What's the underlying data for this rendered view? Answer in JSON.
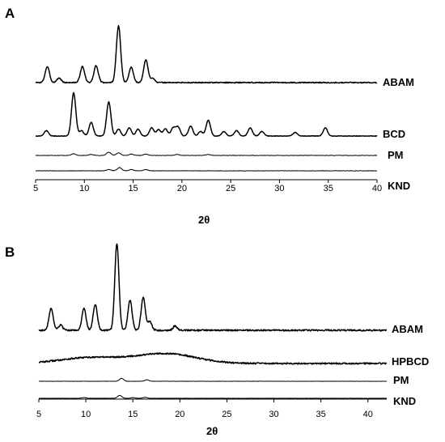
{
  "chart_data": [
    {
      "type": "line",
      "panel": "A",
      "xlabel": "2θ",
      "ylabel": "",
      "xlim": [
        5,
        40
      ],
      "xticks": [
        5,
        10,
        15,
        20,
        25,
        30,
        35,
        40
      ],
      "y_axis": "none (stacked offset traces, arbitrary intensity)",
      "grid": false,
      "series": [
        {
          "name": "ABAM",
          "baseline": 0,
          "peaks": [
            [
              6.2,
              0.28
            ],
            [
              7.4,
              0.08
            ],
            [
              9.8,
              0.28
            ],
            [
              11.2,
              0.3
            ],
            [
              13.5,
              1.0
            ],
            [
              14.8,
              0.27
            ],
            [
              16.3,
              0.4
            ],
            [
              17.0,
              0.08
            ]
          ]
        },
        {
          "name": "BCD",
          "baseline": 0,
          "peaks": [
            [
              6.1,
              0.12
            ],
            [
              8.9,
              0.95
            ],
            [
              9.7,
              0.12
            ],
            [
              10.7,
              0.3
            ],
            [
              12.5,
              0.75
            ],
            [
              13.5,
              0.15
            ],
            [
              14.6,
              0.18
            ],
            [
              15.5,
              0.15
            ],
            [
              16.9,
              0.18
            ],
            [
              17.6,
              0.14
            ],
            [
              18.3,
              0.16
            ],
            [
              19.1,
              0.18
            ],
            [
              19.6,
              0.2
            ],
            [
              20.9,
              0.22
            ],
            [
              21.9,
              0.1
            ],
            [
              22.7,
              0.35
            ],
            [
              24.3,
              0.1
            ],
            [
              25.6,
              0.12
            ],
            [
              27.0,
              0.18
            ],
            [
              28.2,
              0.1
            ],
            [
              31.6,
              0.08
            ],
            [
              34.7,
              0.18
            ]
          ]
        },
        {
          "name": "PM",
          "baseline": 0,
          "peaks": [
            [
              8.9,
              0.05
            ],
            [
              10.7,
              0.03
            ],
            [
              12.5,
              0.1
            ],
            [
              13.5,
              0.08
            ],
            [
              14.8,
              0.04
            ],
            [
              16.3,
              0.04
            ],
            [
              19.5,
              0.03
            ],
            [
              22.7,
              0.03
            ]
          ]
        },
        {
          "name": "KND",
          "baseline": 0,
          "peaks": [
            [
              12.5,
              0.04
            ],
            [
              13.6,
              0.1
            ],
            [
              14.8,
              0.04
            ],
            [
              16.3,
              0.04
            ]
          ]
        }
      ]
    },
    {
      "type": "line",
      "panel": "B",
      "xlabel": "2θ",
      "ylabel": "",
      "xlim": [
        5,
        42
      ],
      "xticks": [
        5,
        10,
        15,
        20,
        25,
        30,
        35,
        40
      ],
      "y_axis": "none (stacked offset traces, arbitrary intensity)",
      "grid": false,
      "series": [
        {
          "name": "ABAM",
          "baseline": 0,
          "peaks": [
            [
              6.3,
              0.25
            ],
            [
              7.3,
              0.06
            ],
            [
              9.8,
              0.25
            ],
            [
              11.0,
              0.3
            ],
            [
              13.3,
              1.0
            ],
            [
              14.7,
              0.35
            ],
            [
              16.1,
              0.38
            ],
            [
              16.8,
              0.1
            ],
            [
              19.5,
              0.05
            ]
          ]
        },
        {
          "name": "HPBCD",
          "baseline": 0,
          "humps": [
            [
              10.5,
              0.45
            ],
            [
              18.5,
              0.75
            ]
          ]
        },
        {
          "name": "PM",
          "baseline": 0,
          "peaks": [
            [
              13.8,
              0.12
            ],
            [
              16.5,
              0.06
            ]
          ]
        },
        {
          "name": "KND",
          "baseline": 0,
          "peaks": [
            [
              9.8,
              0.03
            ],
            [
              13.6,
              0.12
            ],
            [
              15.0,
              0.03
            ],
            [
              16.3,
              0.04
            ]
          ]
        }
      ]
    }
  ],
  "panels": {
    "a": {
      "letter": "A",
      "axis_title": "2θ",
      "tick_labels": [
        "5",
        "10",
        "15",
        "20",
        "25",
        "30",
        "35",
        "40"
      ],
      "series_labels": [
        "ABAM",
        "BCD",
        "PM",
        "KND"
      ]
    },
    "b": {
      "letter": "B",
      "axis_title": "2θ",
      "tick_labels": [
        "5",
        "10",
        "15",
        "20",
        "25",
        "30",
        "35",
        "40"
      ],
      "series_labels": [
        "ABAM",
        "HPBCD",
        "PM",
        "KND"
      ]
    }
  }
}
